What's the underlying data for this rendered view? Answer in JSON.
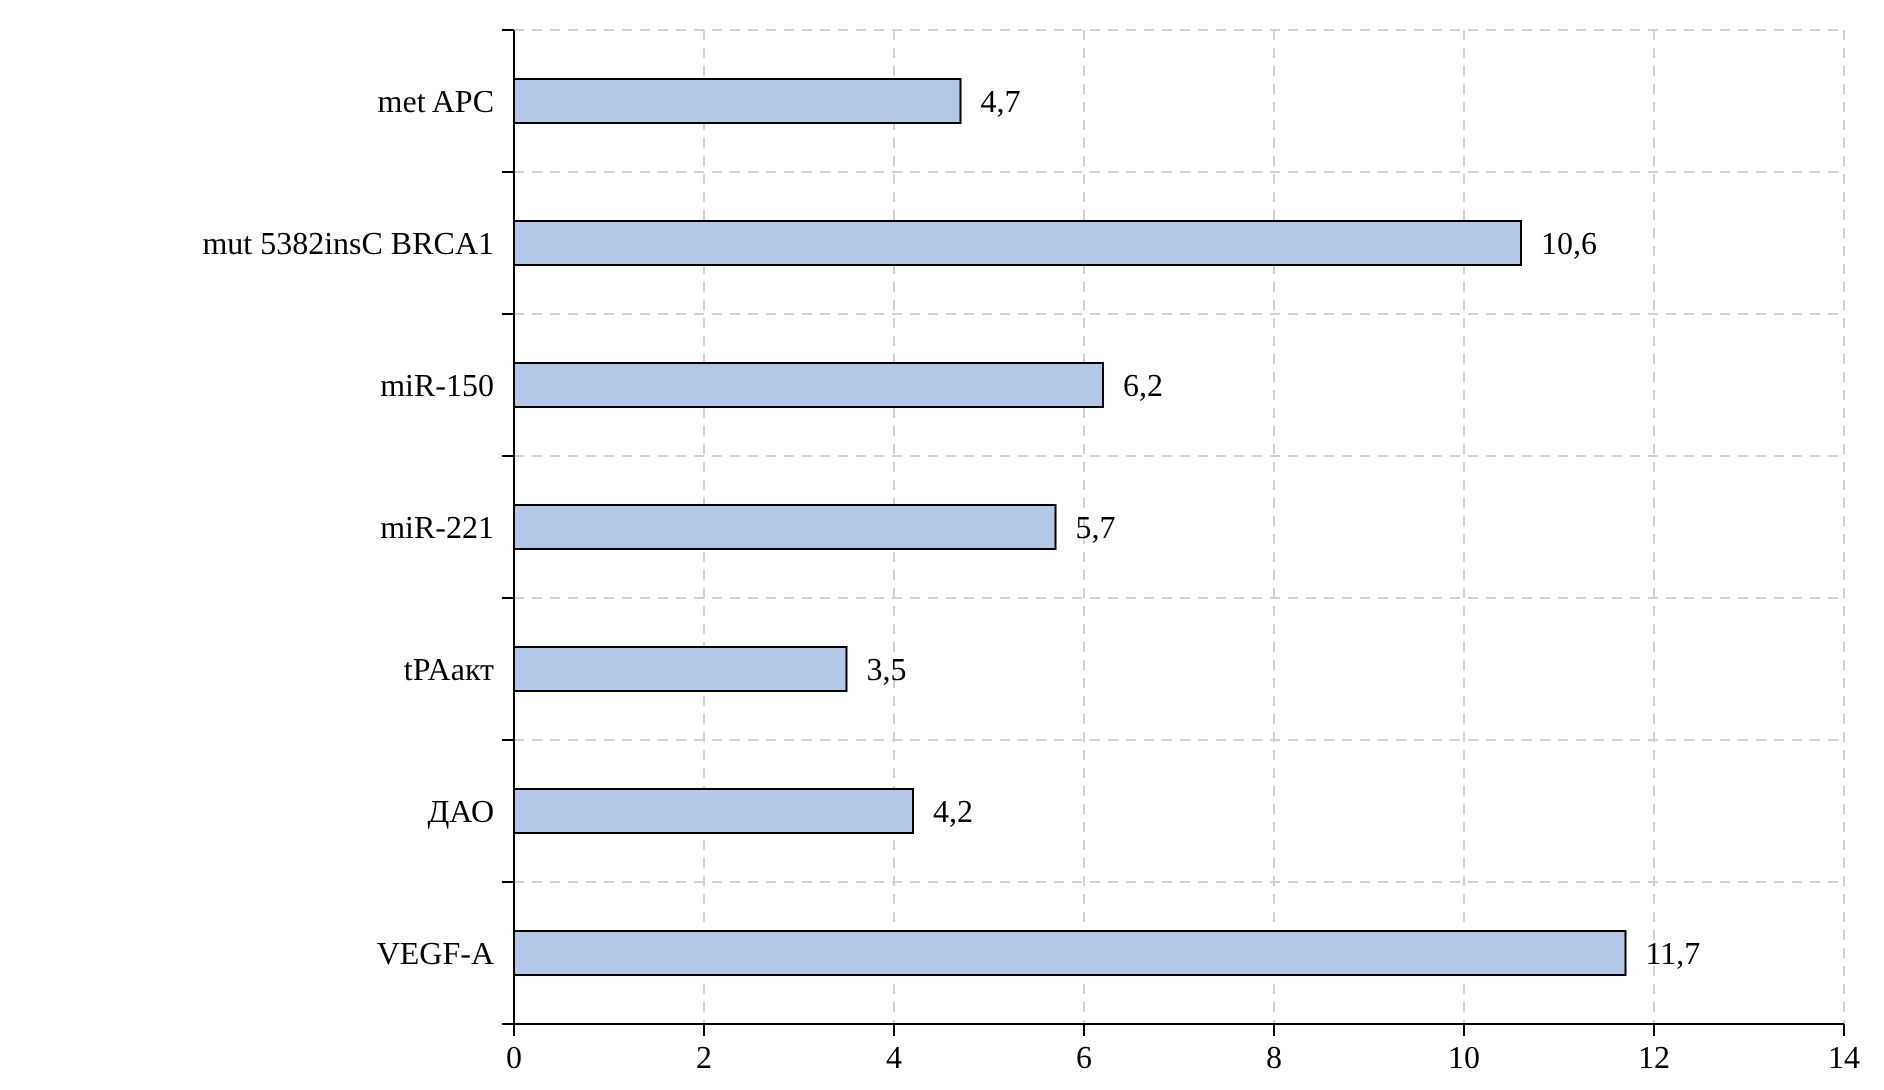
{
  "chart_data": {
    "type": "bar",
    "orientation": "horizontal",
    "categories": [
      "met APC",
      "mut 5382insC BRCA1",
      "miR-150",
      "miR-221",
      "tPAакт",
      "ДАО",
      "VEGF-A"
    ],
    "values": [
      4.7,
      10.6,
      6.2,
      5.7,
      3.5,
      4.2,
      11.7
    ],
    "value_labels": [
      "4,7",
      "10,6",
      "6,2",
      "5,7",
      "3,5",
      "4,2",
      "11,7"
    ],
    "color": "#b4c7e7",
    "xlim": [
      0,
      14
    ],
    "xticks": [
      0,
      2,
      4,
      6,
      8,
      10,
      12,
      14
    ],
    "grid": true
  }
}
